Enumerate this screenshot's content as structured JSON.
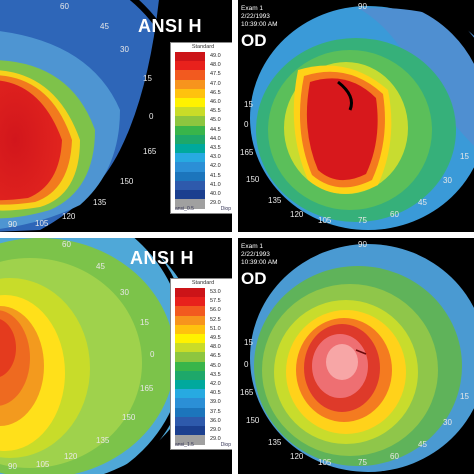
{
  "panels": {
    "tl": {
      "title": "ANSI H",
      "ticks": [
        "60",
        "45",
        "30",
        "15",
        "0",
        "165",
        "150",
        "135",
        "120",
        "105",
        "90"
      ]
    },
    "tr": {
      "exam": "Exam 1",
      "date": "2/22/1993",
      "time": "10:39:00 AM",
      "eye": "OD",
      "ticks": [
        "90",
        "15",
        "0",
        "165",
        "150",
        "135",
        "120",
        "105",
        "75",
        "60",
        "45",
        "30",
        "15"
      ]
    },
    "bl": {
      "title": "ANSI H",
      "ticks": [
        "60",
        "45",
        "30",
        "15",
        "0",
        "165",
        "150",
        "135",
        "120",
        "105",
        "90"
      ]
    },
    "br": {
      "exam": "Exam 1",
      "date": "2/22/1993",
      "time": "10:39:00 AM",
      "eye": "OD",
      "ticks": [
        "90",
        "15",
        "0",
        "165",
        "150",
        "135",
        "120",
        "105",
        "75",
        "60",
        "45",
        "30",
        "15"
      ]
    }
  },
  "scale_top": {
    "header": "Standard",
    "values": [
      "49.0",
      "48.0",
      "47.5",
      "47.0",
      "46.5",
      "46.0",
      "45.5",
      "45.0",
      "44.5",
      "44.0",
      "43.5",
      "43.0",
      "42.0",
      "41.5",
      "41.0",
      "40.0",
      "29.0"
    ],
    "foot_left": "ansi_0.5",
    "foot_right": "Diop"
  },
  "scale_bottom": {
    "header": "Standard",
    "values": [
      "53.0",
      "57.5",
      "56.0",
      "52.5",
      "51.0",
      "49.5",
      "48.0",
      "46.5",
      "45.0",
      "43.5",
      "42.0",
      "40.5",
      "39.0",
      "37.5",
      "36.0",
      "29.0",
      "29.0"
    ],
    "foot_left": "ansi_1.5",
    "foot_right": "Diop"
  },
  "colors": [
    "#cc1418",
    "#e8211c",
    "#f25a1f",
    "#f7941d",
    "#ffc20e",
    "#fff200",
    "#c9dc28",
    "#8dc63f",
    "#39b54a",
    "#1ea86a",
    "#00a99d",
    "#27aae1",
    "#2b8fd6",
    "#1c75bc",
    "#2e5aac",
    "#1b3f8f",
    "#a0a0a0"
  ]
}
